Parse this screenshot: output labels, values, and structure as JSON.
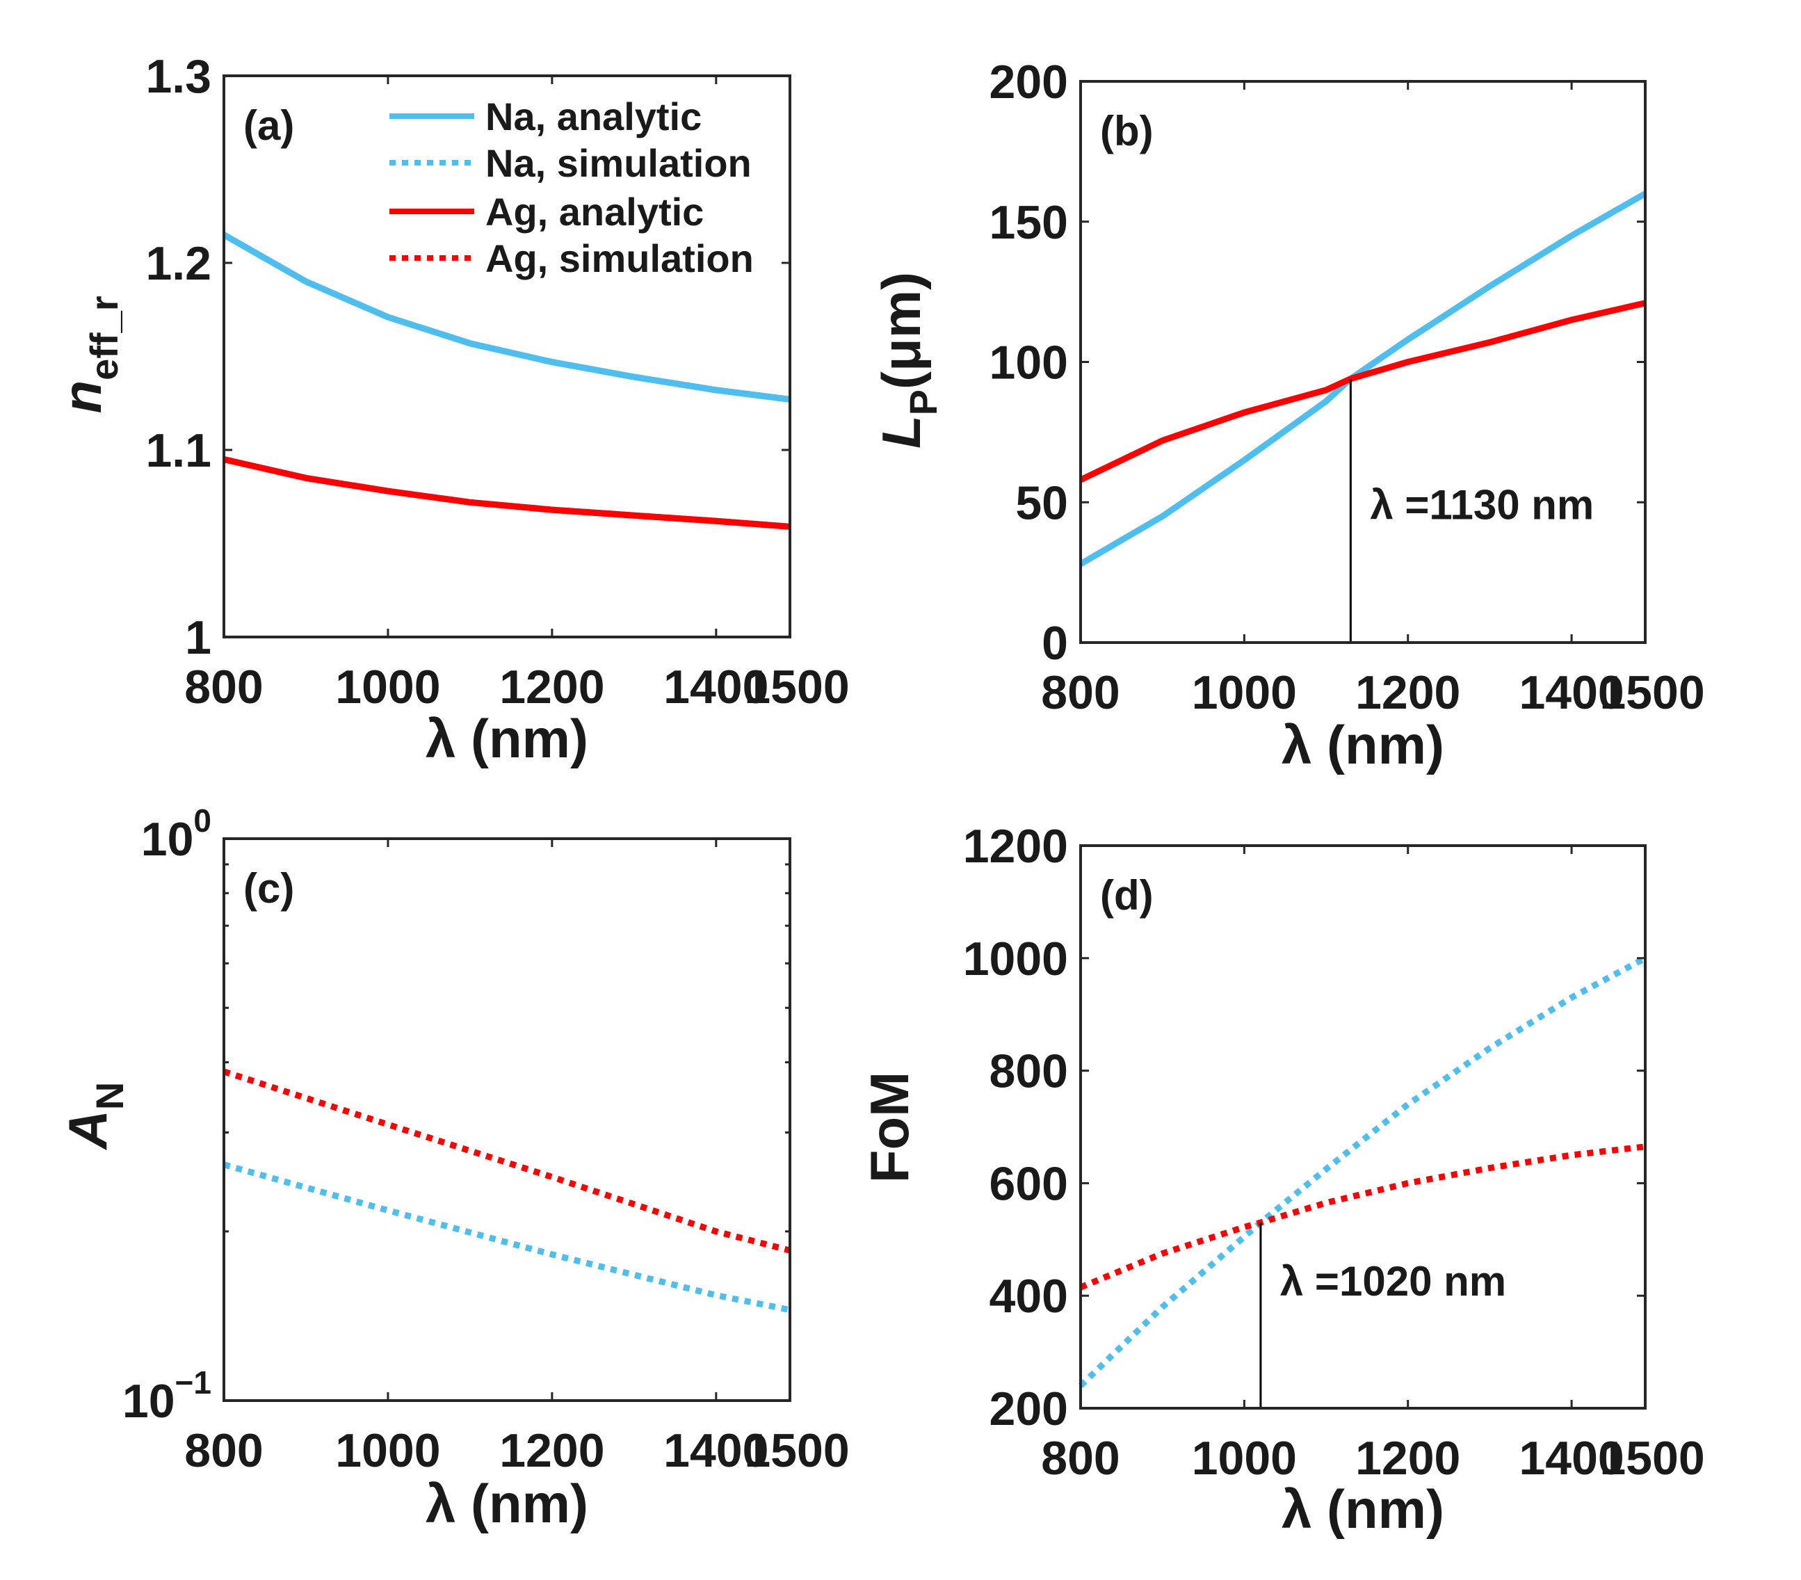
{
  "colors": {
    "na": "#4dbeee",
    "ag": "#ff0000",
    "axis": "#262626"
  },
  "chart_data": [
    {
      "id": "a",
      "type": "line",
      "panel_label": "(a)",
      "xlabel": "λ (nm)",
      "ylabel_main": "n",
      "ylabel_sub": "eff_r",
      "xlim": [
        800,
        1490
      ],
      "ylim": [
        1.0,
        1.3
      ],
      "yscale": "linear",
      "xticks": [
        800,
        1000,
        1200,
        1400
      ],
      "xtick_labels": [
        "800",
        "1000",
        "1200",
        "1400"
      ],
      "xmax_label": "1500",
      "yticks": [
        1.0,
        1.1,
        1.2,
        1.3
      ],
      "ytick_labels": [
        "1",
        "1.1",
        "1.2",
        "1.3"
      ],
      "legend": {
        "placement": "top-right",
        "entries": [
          {
            "label": "Na, analytic",
            "color": "na",
            "style": "solid"
          },
          {
            "label": "Na, simulation",
            "color": "na",
            "style": "dotted"
          },
          {
            "label": "Ag, analytic",
            "color": "ag",
            "style": "solid"
          },
          {
            "label": "Ag, simulation",
            "color": "ag",
            "style": "dotted"
          }
        ]
      },
      "series": [
        {
          "name": "Na, analytic",
          "color": "na",
          "style": "solid",
          "x": [
            800,
            900,
            1000,
            1100,
            1200,
            1300,
            1400,
            1490
          ],
          "y": [
            1.215,
            1.19,
            1.171,
            1.157,
            1.147,
            1.139,
            1.132,
            1.127
          ]
        },
        {
          "name": "Na, simulation",
          "color": "na",
          "style": "solid",
          "x": [
            800,
            900,
            1000,
            1100,
            1200,
            1300,
            1400,
            1490
          ],
          "y": [
            1.215,
            1.19,
            1.171,
            1.157,
            1.147,
            1.139,
            1.132,
            1.127
          ]
        },
        {
          "name": "Ag, analytic",
          "color": "ag",
          "style": "solid",
          "x": [
            800,
            900,
            1000,
            1100,
            1200,
            1300,
            1400,
            1490
          ],
          "y": [
            1.095,
            1.085,
            1.078,
            1.072,
            1.068,
            1.065,
            1.062,
            1.059
          ]
        },
        {
          "name": "Ag, simulation",
          "color": "ag",
          "style": "solid",
          "x": [
            800,
            900,
            1000,
            1100,
            1200,
            1300,
            1400,
            1490
          ],
          "y": [
            1.095,
            1.085,
            1.078,
            1.072,
            1.068,
            1.065,
            1.062,
            1.059
          ]
        }
      ]
    },
    {
      "id": "b",
      "type": "line",
      "panel_label": "(b)",
      "xlabel": "λ (nm)",
      "ylabel_main": "L",
      "ylabel_sub": "P",
      "ylabel_unit": "(μm)",
      "xlim": [
        800,
        1490
      ],
      "ylim": [
        0,
        200
      ],
      "yscale": "linear",
      "xticks": [
        800,
        1000,
        1200,
        1400
      ],
      "xtick_labels": [
        "800",
        "1000",
        "1200",
        "1400"
      ],
      "xmax_label": "1500",
      "yticks": [
        0,
        50,
        100,
        150,
        200
      ],
      "ytick_labels": [
        "0",
        "50",
        "100",
        "150",
        "200"
      ],
      "annotation": {
        "text": "λ =1130 nm",
        "x": 1130,
        "y": 94
      },
      "series": [
        {
          "name": "Na",
          "color": "na",
          "style": "solid",
          "x": [
            800,
            900,
            1000,
            1100,
            1130,
            1200,
            1300,
            1400,
            1490
          ],
          "y": [
            28,
            45,
            65,
            86,
            94,
            108,
            127,
            145,
            160
          ]
        },
        {
          "name": "Ag",
          "color": "ag",
          "style": "solid",
          "x": [
            800,
            900,
            1000,
            1100,
            1130,
            1200,
            1300,
            1400,
            1490
          ],
          "y": [
            58,
            72,
            82,
            90,
            94,
            100,
            107,
            115,
            121
          ]
        }
      ]
    },
    {
      "id": "c",
      "type": "line",
      "panel_label": "(c)",
      "xlabel": "λ (nm)",
      "ylabel_main": "A",
      "ylabel_sub": "N",
      "xlim": [
        800,
        1490
      ],
      "ylim": [
        0.1,
        1
      ],
      "yscale": "log",
      "xticks": [
        800,
        1000,
        1200,
        1400
      ],
      "xtick_labels": [
        "800",
        "1000",
        "1200",
        "1400"
      ],
      "xmax_label": "1500",
      "yticks": [
        0.1,
        1
      ],
      "ytick_labels": [
        [
          "10",
          "−1"
        ],
        [
          "10",
          "0"
        ]
      ],
      "series": [
        {
          "name": "Ag, simulation",
          "color": "ag",
          "style": "dotted",
          "x": [
            800,
            1000,
            1200,
            1400,
            1490
          ],
          "y": [
            0.385,
            0.31,
            0.25,
            0.2,
            0.185
          ]
        },
        {
          "name": "Na, simulation",
          "color": "na",
          "style": "dotted",
          "x": [
            800,
            1000,
            1200,
            1400,
            1490
          ],
          "y": [
            0.263,
            0.218,
            0.182,
            0.154,
            0.145
          ]
        }
      ]
    },
    {
      "id": "d",
      "type": "line",
      "panel_label": "(d)",
      "xlabel": "λ (nm)",
      "ylabel_main": "FoM",
      "xlim": [
        800,
        1490
      ],
      "ylim": [
        200,
        1200
      ],
      "yscale": "linear",
      "xticks": [
        800,
        1000,
        1200,
        1400
      ],
      "xtick_labels": [
        "800",
        "1000",
        "1200",
        "1400"
      ],
      "xmax_label": "1500",
      "yticks": [
        200,
        400,
        600,
        800,
        1000,
        1200
      ],
      "ytick_labels": [
        "200",
        "400",
        "600",
        "800",
        "1000",
        "1200"
      ],
      "annotation": {
        "text": "λ =1020 nm",
        "x": 1020,
        "y": 530
      },
      "series": [
        {
          "name": "Na, simulation",
          "color": "na",
          "style": "dotted",
          "x": [
            800,
            900,
            1000,
            1020,
            1100,
            1200,
            1300,
            1400,
            1490
          ],
          "y": [
            240,
            380,
            505,
            530,
            625,
            740,
            840,
            930,
            1000
          ]
        },
        {
          "name": "Ag, simulation",
          "color": "ag",
          "style": "dotted",
          "x": [
            800,
            900,
            1000,
            1020,
            1100,
            1200,
            1300,
            1400,
            1490
          ],
          "y": [
            415,
            475,
            522,
            530,
            565,
            600,
            627,
            650,
            665
          ]
        }
      ]
    }
  ]
}
